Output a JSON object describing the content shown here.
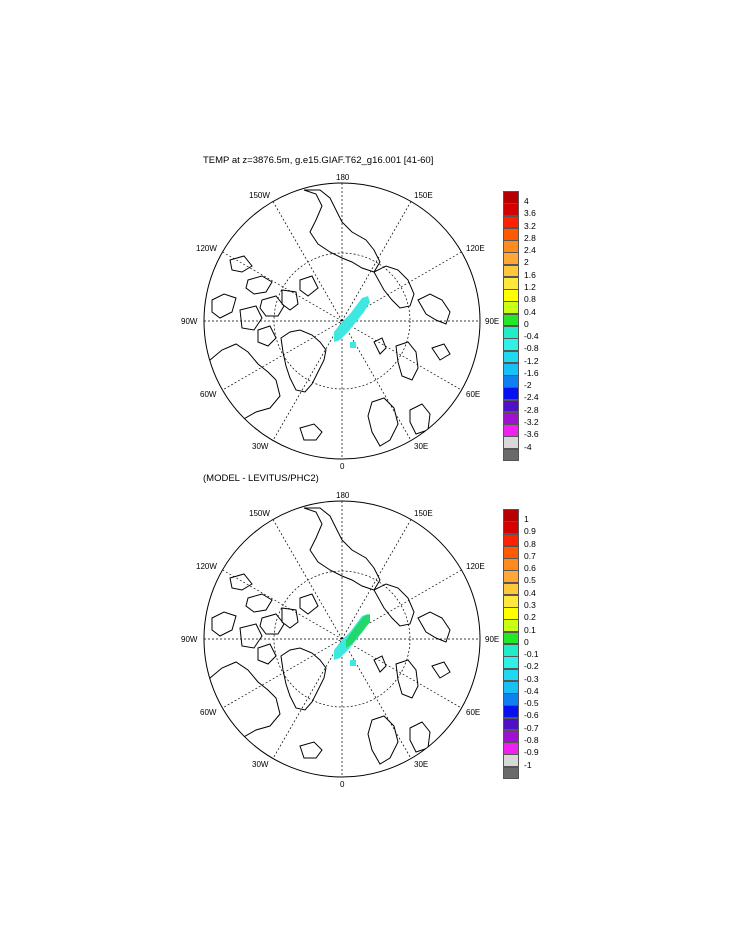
{
  "panels": [
    {
      "title": "TEMP at z=3876.5m, g.e15.GIAF.T62_g16.001 [41-60]",
      "lon_labels": {
        "lab_180": "180",
        "lab_150e": "150E",
        "lab_120e": "120E",
        "lab_90e": "90E",
        "lab_60e": "60E",
        "lab_30e": "30E",
        "lab_0": "0",
        "lab_30w": "30W",
        "lab_60w": "60W",
        "lab_90w": "90W",
        "lab_120w": "120W",
        "lab_150w": "150W"
      },
      "colorbar_labels": [
        "4",
        "3.6",
        "3.2",
        "2.8",
        "2.4",
        "2",
        "1.6",
        "1.2",
        "0.8",
        "0.4",
        "0",
        "-0.4",
        "-0.8",
        "-1.2",
        "-1.6",
        "-2",
        "-2.4",
        "-2.8",
        "-3.2",
        "-3.6",
        "-4"
      ],
      "feature_color": "#3ee8e0",
      "feature_color_2": "#3ee8e0"
    },
    {
      "title": "(MODEL - LEVITUS/PHC2)",
      "lon_labels": {
        "lab_180": "180",
        "lab_150e": "150E",
        "lab_120e": "120E",
        "lab_90e": "90E",
        "lab_60e": "60E",
        "lab_30e": "30E",
        "lab_0": "0",
        "lab_30w": "30W",
        "lab_60w": "60W",
        "lab_90w": "90W",
        "lab_120w": "120W",
        "lab_150w": "150W"
      },
      "colorbar_labels": [
        "1",
        "0.9",
        "0.8",
        "0.7",
        "0.6",
        "0.5",
        "0.4",
        "0.3",
        "0.2",
        "0.1",
        "0",
        "-0.1",
        "-0.2",
        "-0.3",
        "-0.4",
        "-0.5",
        "-0.6",
        "-0.7",
        "-0.8",
        "-0.9",
        "-1"
      ],
      "feature_color": "#3ee8e0",
      "feature_color_2": "#22d86a"
    }
  ],
  "colorbar_colors": [
    "#b80000",
    "#d40000",
    "#ff2200",
    "#ff5a00",
    "#ff8a1e",
    "#ffa838",
    "#ffc83c",
    "#ffe83c",
    "#ffff00",
    "#c8ff14",
    "#22e828",
    "#20ecc8",
    "#30f0e8",
    "#20d8f0",
    "#18c0f8",
    "#1080f0",
    "#0810f0",
    "#5010c8",
    "#a010d0",
    "#f020f0",
    "#d8d8d8",
    "#6a6a6a"
  ],
  "map_colors": {
    "coast": "#000000",
    "grid": "#000000"
  }
}
